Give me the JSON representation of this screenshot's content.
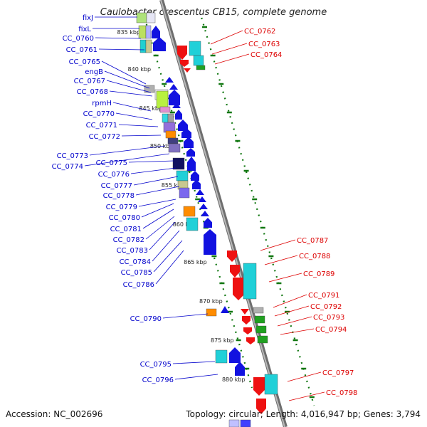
{
  "title": "Caulobacter crescentus CB15, complete genome",
  "footer": {
    "accession": "Accession: NC_002696",
    "topology": "Topology: circular; Length: 4,016,947 bp; Genes: 3,794"
  },
  "colors": {
    "left_label": "#0000cc",
    "right_label": "#dd0000",
    "backbone": "#888888",
    "ruler": "#117711"
  },
  "ticks": [
    "835 kbp",
    "840 kbp",
    "845 kbp",
    "850 kbp",
    "855 kbp",
    "860 kbp",
    "865 kbp",
    "870 kbp",
    "875 kbp",
    "880 kbp"
  ],
  "left_genes": [
    "fixJ",
    "fixL",
    "CC_0760",
    "CC_0761",
    "CC_0765",
    "engB",
    "CC_0767",
    "CC_0768",
    "rpmH",
    "CC_0770",
    "CC_0771",
    "CC_0772",
    "CC_0773",
    "CC_0774",
    "CC_0775",
    "CC_0776",
    "CC_0777",
    "CC_0778",
    "CC_0779",
    "CC_0780",
    "CC_0781",
    "CC_0782",
    "CC_0783",
    "CC_0784",
    "CC_0785",
    "CC_0786",
    "CC_0790",
    "CC_0795",
    "CC_0796"
  ],
  "right_genes": [
    "CC_0762",
    "CC_0763",
    "CC_0764",
    "CC_0787",
    "CC_0788",
    "CC_0789",
    "CC_0791",
    "CC_0792",
    "CC_0793",
    "CC_0794",
    "CC_0797",
    "CC_0798"
  ]
}
